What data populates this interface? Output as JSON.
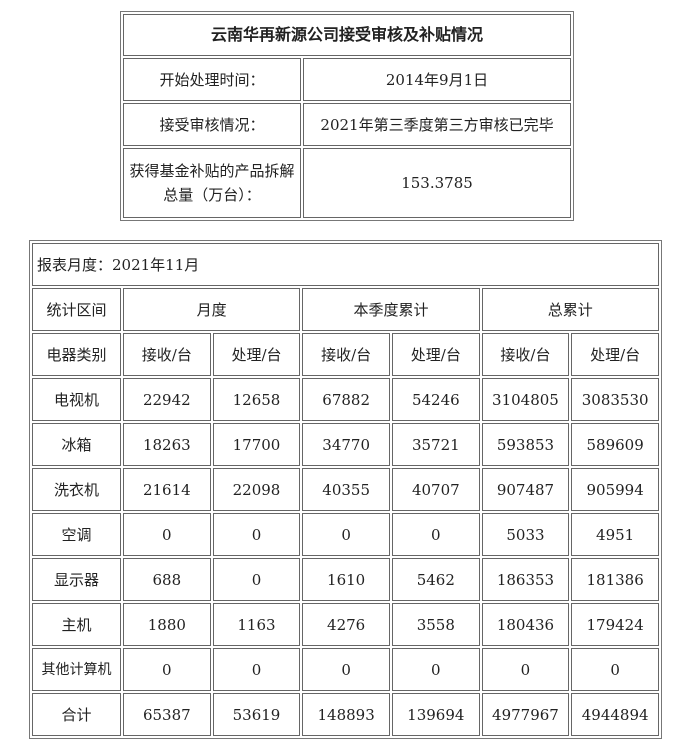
{
  "summary": {
    "title": "云南华再新源公司接受审核及补贴情况",
    "rows": [
      {
        "label": "开始处理时间：",
        "value": "2014年9月1日"
      },
      {
        "label": "接受审核情况：",
        "value": "2021年第三季度第三方审核已完毕"
      },
      {
        "label": "获得基金补贴的产品拆解总量（万台）：",
        "value": "153.3785"
      }
    ]
  },
  "report": {
    "month_label": "报表月度：2021年11月",
    "header1": [
      "统计区间",
      "月度",
      "本季度累计",
      "总累计"
    ],
    "header2": [
      "电器类别",
      "接收/台",
      "处理/台",
      "接收/台",
      "处理/台",
      "接收/台",
      "处理/台"
    ],
    "rows": [
      [
        "电视机",
        "22942",
        "12658",
        "67882",
        "54246",
        "3104805",
        "3083530"
      ],
      [
        "冰箱",
        "18263",
        "17700",
        "34770",
        "35721",
        "593853",
        "589609"
      ],
      [
        "洗衣机",
        "21614",
        "22098",
        "40355",
        "40707",
        "907487",
        "905994"
      ],
      [
        "空调",
        "0",
        "0",
        "0",
        "0",
        "5033",
        "4951"
      ],
      [
        "显示器",
        "688",
        "0",
        "1610",
        "5462",
        "186353",
        "181386"
      ],
      [
        "主机",
        "1880",
        "1163",
        "4276",
        "3558",
        "180436",
        "179424"
      ],
      [
        "其他计算机",
        "0",
        "0",
        "0",
        "0",
        "0",
        "0"
      ],
      [
        "合计",
        "65387",
        "53619",
        "148893",
        "139694",
        "4977967",
        "4944894"
      ]
    ]
  }
}
